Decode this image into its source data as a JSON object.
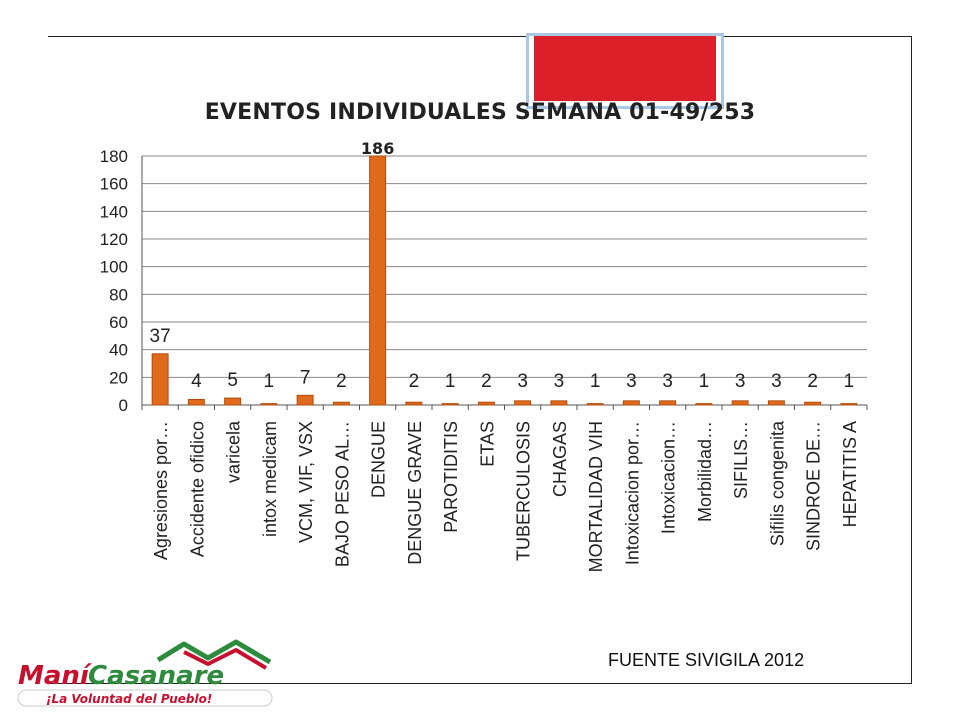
{
  "source_label": "FUENTE SIVIGILA 2012",
  "logo": {
    "brand_left": "Maní",
    "brand_right": "Casanare",
    "slogan": "¡La Voluntad del Pueblo!"
  },
  "colors": {
    "bar": "#e06a1b",
    "bar_dark": "#b24c0c",
    "banner_red": "#dc2029",
    "logo_red": "#c8102e",
    "logo_green": "#2e8b3d"
  },
  "chart_data": {
    "type": "bar",
    "title": "EVENTOS INDIVIDUALES SEMANA 01-49/253",
    "categories": [
      "Agresiones por…",
      "Accidente ofidico",
      "varicela",
      "intox medicam",
      "VCM, VIF, VSX",
      "BAJO PESO AL…",
      "DENGUE",
      "DENGUE GRAVE",
      "PAROTIDITIS",
      "ETAS",
      "TUBERCULOSIS",
      "CHAGAS",
      "MORTALIDAD VIH",
      "Intoxicacion por…",
      "Intoxicacion…",
      "Morbilidad…",
      "SIFILIS…",
      "Sifilis congenita",
      "SINDROE DE…",
      "HEPATITIS A"
    ],
    "values": [
      37,
      4,
      5,
      1,
      7,
      2,
      186,
      2,
      1,
      2,
      3,
      3,
      1,
      3,
      3,
      1,
      3,
      3,
      2,
      1
    ],
    "data_labels": [
      "37",
      "4",
      "5",
      "1",
      "7",
      "2",
      "186",
      "2",
      "1",
      "2",
      "3",
      "3",
      "1",
      "3",
      "3",
      "1",
      "3",
      "3",
      "2",
      "1"
    ],
    "ylim": [
      0,
      180
    ],
    "yticks": [
      "0",
      "20",
      "40",
      "60",
      "80",
      "100",
      "120",
      "140",
      "160",
      "180"
    ],
    "grid": true,
    "legend": "none"
  }
}
